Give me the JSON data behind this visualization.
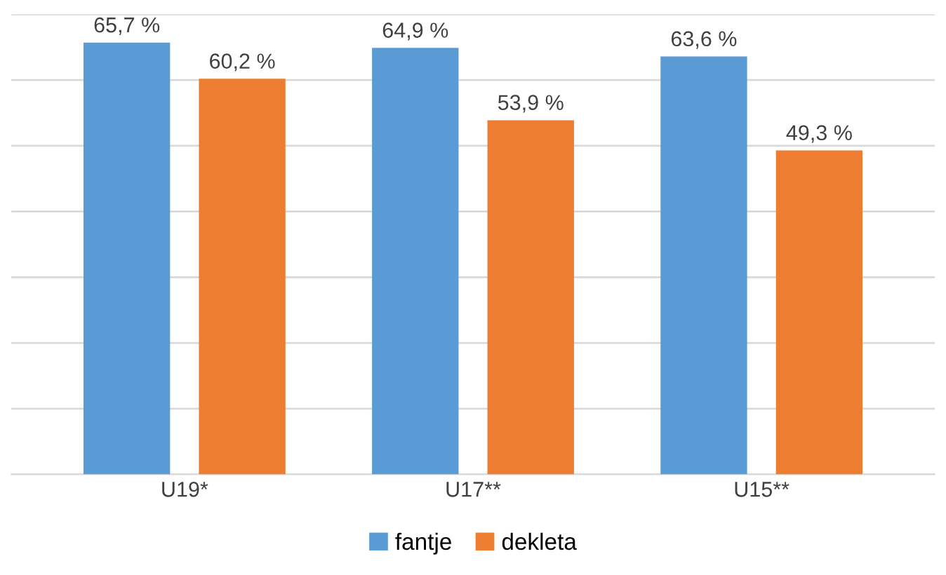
{
  "chart_data": {
    "type": "bar",
    "categories": [
      "U19*",
      "U17**",
      "U15**"
    ],
    "series": [
      {
        "name": "fantje",
        "color": "#5b9bd5",
        "values": [
          65.7,
          64.9,
          63.6
        ],
        "value_labels": [
          "65,7 %",
          "64,9 %",
          "63,6 %"
        ]
      },
      {
        "name": "dekleta",
        "color": "#ed7d31",
        "values": [
          60.2,
          53.9,
          49.3
        ],
        "value_labels": [
          "60,2 %",
          "53,9 %",
          "49,3 %"
        ]
      }
    ],
    "ylim": [
      0,
      70
    ],
    "yticks": [
      {
        "value": 0,
        "label": null
      },
      {
        "value": 10,
        "label": null
      },
      {
        "value": 20,
        "label": null
      },
      {
        "value": 30,
        "label": null
      },
      {
        "value": 40,
        "label": null
      },
      {
        "value": 50,
        "label": null
      },
      {
        "value": 60,
        "label": null
      },
      {
        "value": 70,
        "label": null
      }
    ],
    "tick_labels": "x",
    "grid": "y",
    "legend": "bottom"
  }
}
